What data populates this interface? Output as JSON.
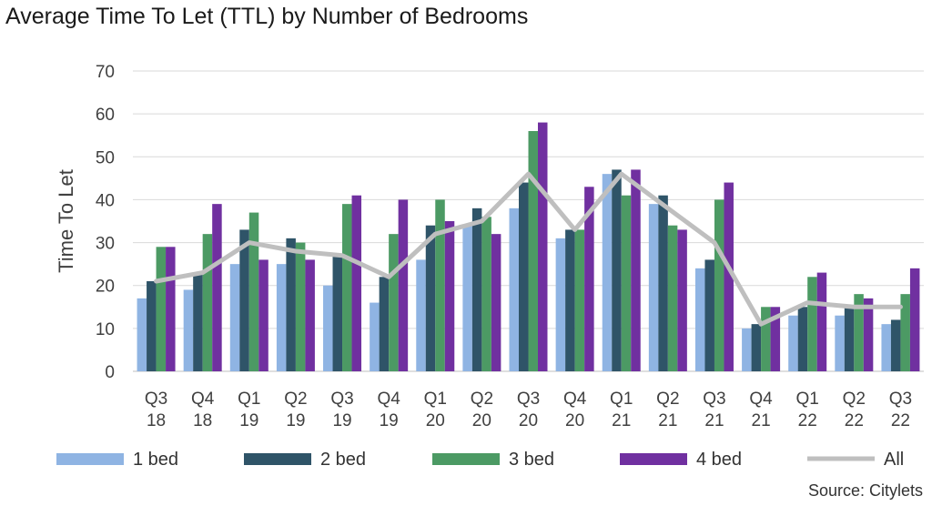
{
  "chart_data": {
    "type": "bar",
    "title": "Average Time To Let (TTL) by Number of Bedrooms",
    "ylabel": "Time To Let",
    "xlabel": "",
    "ylim": [
      0,
      70
    ],
    "yticks": [
      0,
      10,
      20,
      30,
      40,
      50,
      60,
      70
    ],
    "grid": true,
    "legend_position": "bottom",
    "categories": [
      "Q3 18",
      "Q4 18",
      "Q1 19",
      "Q2 19",
      "Q3 19",
      "Q4 19",
      "Q1 20",
      "Q2 20",
      "Q3 20",
      "Q4 20",
      "Q1 21",
      "Q2 21",
      "Q3 21",
      "Q4 21",
      "Q1 22",
      "Q2 22",
      "Q3 22"
    ],
    "category_lines": [
      [
        "Q3",
        "18"
      ],
      [
        "Q4",
        "18"
      ],
      [
        "Q1",
        "19"
      ],
      [
        "Q2",
        "19"
      ],
      [
        "Q3",
        "19"
      ],
      [
        "Q4",
        "19"
      ],
      [
        "Q1",
        "20"
      ],
      [
        "Q2",
        "20"
      ],
      [
        "Q3",
        "20"
      ],
      [
        "Q4",
        "20"
      ],
      [
        "Q1",
        "21"
      ],
      [
        "Q2",
        "21"
      ],
      [
        "Q3",
        "21"
      ],
      [
        "Q4",
        "21"
      ],
      [
        "Q1",
        "22"
      ],
      [
        "Q2",
        "22"
      ],
      [
        "Q3",
        "22"
      ]
    ],
    "series": [
      {
        "name": "1 bed",
        "kind": "bar",
        "color": "#8fb4e3",
        "values": [
          17,
          19,
          25,
          25,
          20,
          16,
          26,
          34,
          38,
          31,
          46,
          39,
          24,
          10,
          13,
          13,
          11
        ]
      },
      {
        "name": "2 bed",
        "kind": "bar",
        "color": "#2f5468",
        "values": [
          21,
          23,
          33,
          31,
          27,
          22,
          34,
          38,
          44,
          33,
          47,
          41,
          26,
          11,
          15,
          15,
          12
        ]
      },
      {
        "name": "3 bed",
        "kind": "bar",
        "color": "#4c9a64",
        "values": [
          29,
          32,
          37,
          30,
          39,
          32,
          40,
          36,
          56,
          33,
          41,
          34,
          40,
          15,
          22,
          18,
          18
        ]
      },
      {
        "name": "4 bed",
        "kind": "bar",
        "color": "#7030a0",
        "values": [
          29,
          39,
          26,
          26,
          41,
          40,
          35,
          32,
          58,
          43,
          47,
          33,
          44,
          15,
          23,
          17,
          24
        ]
      },
      {
        "name": "All",
        "kind": "line",
        "color": "#bfbfbf",
        "values": [
          21,
          23,
          30,
          28,
          27,
          22,
          32,
          35,
          46,
          33,
          46,
          38,
          30,
          11,
          16,
          15,
          15
        ]
      }
    ]
  },
  "source": "Source: Citylets"
}
